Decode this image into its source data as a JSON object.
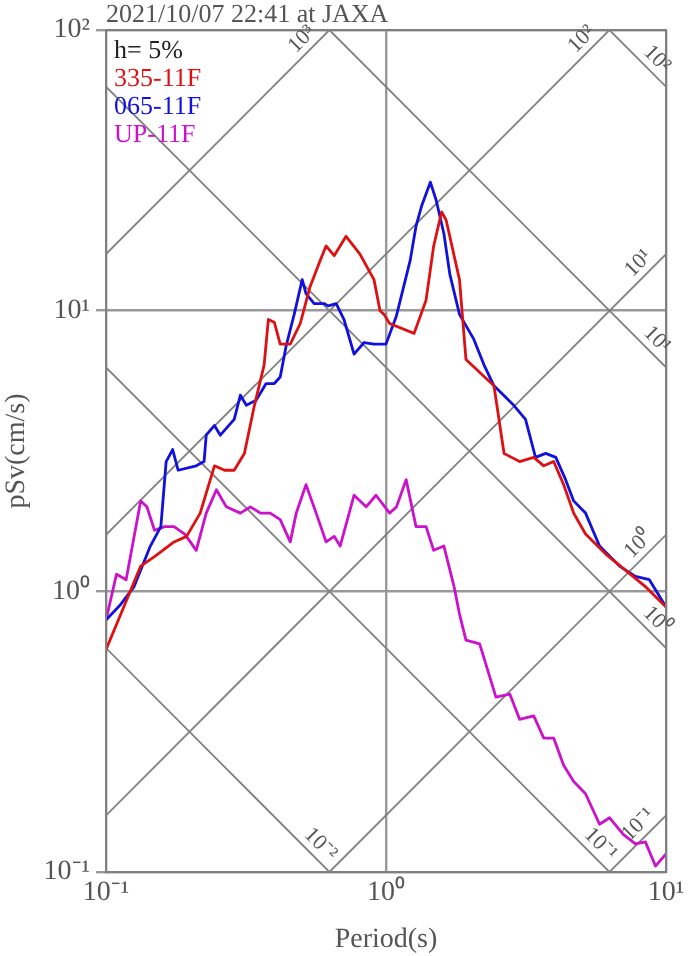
{
  "chart_data": {
    "type": "line",
    "title": "2021/10/07 22:41 at JAXA",
    "xlabel": "Period(s)",
    "ylabel": "pSv(cm/s)",
    "log": "xy",
    "grid": true,
    "legend": "top left",
    "marker": "none",
    "line_style": "solid",
    "annotations": [
      "h= 5%"
    ],
    "xlim": [
      0.1,
      10
    ],
    "xticks": [
      {
        "value": 0.1,
        "label": "10⁻¹"
      },
      {
        "value": 1,
        "label": "10⁰"
      },
      {
        "value": 10,
        "label": "10¹"
      }
    ],
    "ylim": [
      0.1,
      100
    ],
    "yticks": [
      {
        "value": 0.1,
        "label": "10⁻¹"
      },
      {
        "value": 1,
        "label": "10⁰"
      },
      {
        "value": 10,
        "label": "10¹"
      },
      {
        "value": 100,
        "label": "10²"
      }
    ],
    "series": [
      {
        "name": "335-11F",
        "color": "#dd1111",
        "x": [
          0.1,
          0.113,
          0.133,
          0.149,
          0.175,
          0.194,
          0.217,
          0.244,
          0.265,
          0.287,
          0.312,
          0.339,
          0.367,
          0.38,
          0.399,
          0.419,
          0.455,
          0.494,
          0.536,
          0.582,
          0.611,
          0.653,
          0.72,
          0.807,
          0.906,
          0.952,
          0.984,
          1.03,
          1.26,
          1.39,
          1.48,
          1.58,
          1.64,
          1.83,
          1.93,
          2.43,
          2.64,
          3.0,
          3.37,
          3.66,
          3.97,
          4.31,
          4.68,
          5.16,
          6.08,
          7.16,
          8.44,
          10
        ],
        "values": [
          0.62,
          0.83,
          1.23,
          1.33,
          1.5,
          1.57,
          1.9,
          2.8,
          2.7,
          2.7,
          3.1,
          4.6,
          6.4,
          9.3,
          9.1,
          7.6,
          7.6,
          9.0,
          12.2,
          15.1,
          17.0,
          15.7,
          18.4,
          15.9,
          12.9,
          10,
          9.7,
          9.0,
          8.3,
          10.9,
          17.0,
          22.5,
          21.0,
          12.9,
          6.7,
          5.4,
          3.1,
          2.9,
          3.0,
          2.8,
          2.9,
          2.4,
          1.9,
          1.6,
          1.36,
          1.19,
          1.04,
          0.88
        ]
      },
      {
        "name": "065-11F",
        "color": "#1111dd",
        "x": [
          0.1,
          0.113,
          0.126,
          0.144,
          0.157,
          0.164,
          0.173,
          0.181,
          0.21,
          0.224,
          0.228,
          0.244,
          0.256,
          0.287,
          0.302,
          0.317,
          0.344,
          0.373,
          0.399,
          0.419,
          0.44,
          0.47,
          0.502,
          0.518,
          0.554,
          0.601,
          0.621,
          0.664,
          0.708,
          0.769,
          0.835,
          0.906,
          1.0,
          1.09,
          1.22,
          1.28,
          1.34,
          1.44,
          1.51,
          1.61,
          1.69,
          1.83,
          2.06,
          2.24,
          2.43,
          2.86,
          3.15,
          3.42,
          3.72,
          4.04,
          4.38,
          4.68,
          5.16,
          5.79,
          6.82,
          7.78,
          8.72,
          10
        ],
        "values": [
          0.79,
          0.9,
          1.04,
          1.45,
          1.7,
          2.9,
          3.2,
          2.7,
          2.8,
          2.9,
          3.6,
          3.9,
          3.6,
          4.1,
          5.0,
          4.6,
          4.8,
          5.5,
          5.5,
          5.8,
          7.5,
          9.7,
          12.9,
          11.5,
          10.6,
          10.6,
          10.4,
          10.6,
          9.3,
          7.0,
          7.7,
          7.6,
          7.6,
          9.6,
          15.1,
          20.0,
          23.6,
          28.7,
          24.8,
          18.8,
          13.5,
          9.7,
          7.9,
          6.4,
          5.4,
          4.6,
          4.1,
          3.0,
          3.1,
          3.0,
          2.5,
          2.1,
          1.9,
          1.45,
          1.23,
          1.13,
          1.1,
          0.88
        ]
      },
      {
        "name": "UP-11F",
        "color": "#cc11cc",
        "x": [
          0.1,
          0.109,
          0.118,
          0.133,
          0.14,
          0.149,
          0.162,
          0.175,
          0.191,
          0.2,
          0.21,
          0.228,
          0.248,
          0.269,
          0.302,
          0.328,
          0.356,
          0.386,
          0.419,
          0.455,
          0.478,
          0.518,
          0.563,
          0.611,
          0.653,
          0.686,
          0.769,
          0.849,
          0.921,
          1.03,
          1.09,
          1.18,
          1.28,
          1.39,
          1.48,
          1.61,
          1.75,
          1.83,
          1.93,
          2.16,
          2.47,
          2.77,
          3.0,
          3.37,
          3.66,
          3.97,
          4.31,
          4.68,
          5.16,
          5.79,
          6.29,
          7.05,
          7.78,
          8.44,
          9.17,
          10
        ],
        "values": [
          0.79,
          1.15,
          1.1,
          2.1,
          2.0,
          1.65,
          1.7,
          1.7,
          1.6,
          1.5,
          1.4,
          1.9,
          2.3,
          2.0,
          1.9,
          2.0,
          1.9,
          1.9,
          1.8,
          1.5,
          1.9,
          2.4,
          1.9,
          1.5,
          1.57,
          1.45,
          2.2,
          2.0,
          2.2,
          1.9,
          2.0,
          2.5,
          1.7,
          1.7,
          1.4,
          1.45,
          1.04,
          0.83,
          0.67,
          0.65,
          0.42,
          0.43,
          0.35,
          0.36,
          0.3,
          0.3,
          0.24,
          0.21,
          0.19,
          0.148,
          0.156,
          0.136,
          0.126,
          0.128,
          0.105,
          0.116
        ]
      },
      {
        "name": "10³",
        "type": "line",
        "color": "#808080",
        "x": [
          0.1,
          0.628
        ],
        "values": [
          15.9,
          100
        ]
      },
      {
        "name": "10²",
        "type": "line",
        "color": "#808080",
        "x": [
          0.1,
          6.28
        ],
        "values": [
          1.59,
          100
        ]
      },
      {
        "name": "10¹",
        "type": "line",
        "color": "#808080",
        "x": [
          0.1,
          10
        ],
        "values": [
          0.159,
          15.9
        ]
      },
      {
        "name": "10⁰",
        "type": "line",
        "color": "#808080",
        "x": [
          0.628,
          10
        ],
        "values": [
          0.1,
          1.59
        ]
      },
      {
        "name": "10⁻¹",
        "type": "line",
        "color": "#808080",
        "x": [
          6.28,
          10
        ],
        "values": [
          0.1,
          0.159
        ]
      },
      {
        "name": "10²",
        "type": "line",
        "color": "#808080",
        "x": [
          6.28,
          10
        ],
        "values": [
          100,
          62.8
        ]
      },
      {
        "name": "10¹",
        "type": "line",
        "color": "#808080",
        "x": [
          0.628,
          10
        ],
        "values": [
          100,
          6.28
        ]
      },
      {
        "name": "10⁰",
        "type": "line",
        "color": "#808080",
        "x": [
          0.1,
          10
        ],
        "values": [
          62.8,
          0.628
        ]
      },
      {
        "name": "10⁻¹",
        "type": "line",
        "color": "#808080",
        "x": [
          0.1,
          6.28
        ],
        "values": [
          6.28,
          0.1
        ]
      },
      {
        "name": "10⁻²",
        "type": "line",
        "color": "#808080",
        "x": [
          0.1,
          0.628
        ],
        "values": [
          0.628,
          0.1
        ]
      }
    ]
  }
}
